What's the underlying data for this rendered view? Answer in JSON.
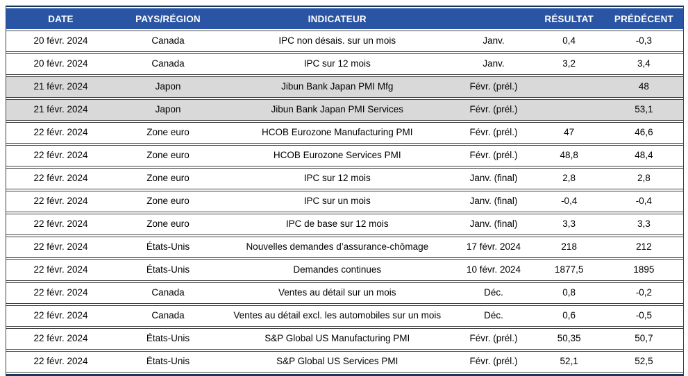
{
  "chart_data": {
    "type": "table",
    "title": "",
    "columns": [
      "DATE",
      "PAYS/RÉGION",
      "INDICATEUR",
      "",
      "RÉSULTAT",
      "PRÉDÉCENT"
    ],
    "column_keys": [
      "date",
      "region",
      "indicator",
      "period",
      "result",
      "previous"
    ],
    "rows": [
      [
        "20 févr. 2024",
        "Canada",
        "IPC non désais. sur un mois",
        "Janv.",
        "0,4",
        "-0,3"
      ],
      [
        "20 févr. 2024",
        "Canada",
        "IPC sur 12 mois",
        "Janv.",
        "3,2",
        "3,4"
      ],
      [
        "21 févr. 2024",
        "Japon",
        "Jibun Bank Japan PMI Mfg",
        "Févr. (prél.)",
        "",
        "48"
      ],
      [
        "21 févr. 2024",
        "Japon",
        "Jibun Bank Japan PMI Services",
        "Févr. (prél.)",
        "",
        "53,1"
      ],
      [
        "22 févr. 2024",
        "Zone euro",
        "HCOB Eurozone Manufacturing PMI",
        "Févr. (prél.)",
        "47",
        "46,6"
      ],
      [
        "22 févr. 2024",
        "Zone euro",
        "HCOB Eurozone Services PMI",
        "Févr. (prél.)",
        "48,8",
        "48,4"
      ],
      [
        "22 févr. 2024",
        "Zone euro",
        "IPC sur 12 mois",
        "Janv. (final)",
        "2,8",
        "2,8"
      ],
      [
        "22 févr. 2024",
        "Zone euro",
        "IPC sur un mois",
        "Janv. (final)",
        "-0,4",
        "-0,4"
      ],
      [
        "22 févr. 2024",
        "Zone euro",
        "IPC de base sur 12 mois",
        "Janv. (final)",
        "3,3",
        "3,3"
      ],
      [
        "22 févr. 2024",
        "États-Unis",
        "Nouvelles demandes d’assurance-chômage",
        "17 févr. 2024",
        "218",
        "212"
      ],
      [
        "22 févr. 2024",
        "États-Unis",
        "Demandes continues",
        "10 févr. 2024",
        "1877,5",
        "1895"
      ],
      [
        "22 févr. 2024",
        "Canada",
        "Ventes au détail sur un mois",
        "Déc.",
        "0,8",
        "-0,2"
      ],
      [
        "22 févr. 2024",
        "Canada",
        "Ventes au détail excl. les automobiles sur un mois",
        "Déc.",
        "0,6",
        "-0,5"
      ],
      [
        "22 févr. 2024",
        "États-Unis",
        "S&P Global US Manufacturing PMI",
        "Févr. (prél.)",
        "50,35",
        "50,7"
      ],
      [
        "22 févr. 2024",
        "États-Unis",
        "S&P Global US Services PMI",
        "Févr. (prél.)",
        "52,1",
        "52,5"
      ]
    ],
    "highlighted_rows": [
      2,
      3
    ],
    "layout": {
      "grid": "horizontal row separators with 2px spacing gaps",
      "alignment": "all cells centered"
    },
    "colors": {
      "header_bg": "#2A55A4",
      "header_text": "#FFFFFF",
      "highlight_row_bg": "#D9D9D9",
      "row_bg": "#FFFFFF",
      "row_border": "#404040",
      "frame_border": "#17365D",
      "body_text": "#000000"
    }
  }
}
